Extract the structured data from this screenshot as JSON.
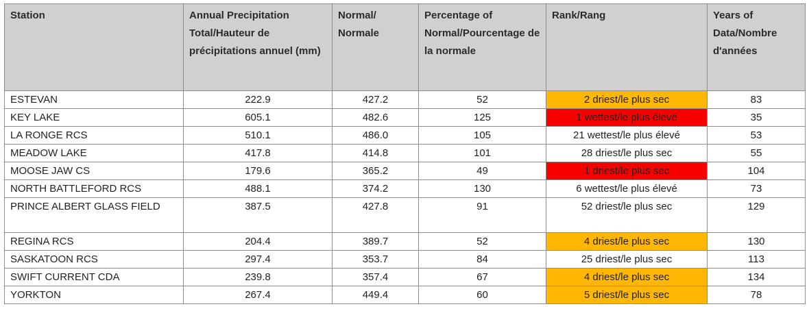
{
  "headers": {
    "station": "Station",
    "total": "Annual Precipitation Total/Hauteur de précipitations annuel (mm)",
    "normal": "Normal/ Normale",
    "percent": "Percentage of Normal/Pourcentage de la normale",
    "rank": "Rank/Rang",
    "years": "Years of Data/Nombre d'années"
  },
  "rows": [
    {
      "station": "ESTEVAN",
      "total": "222.9",
      "normal": "427.2",
      "percent": "52",
      "rank": "2 driest/le plus sec",
      "rank_highlight": "orange",
      "years": "83"
    },
    {
      "station": "KEY LAKE",
      "total": "605.1",
      "normal": "482.6",
      "percent": "125",
      "rank": "1 wettest/le plus élevé",
      "rank_highlight": "red",
      "years": "35"
    },
    {
      "station": "LA RONGE RCS",
      "total": "510.1",
      "normal": "486.0",
      "percent": "105",
      "rank": "21 wettest/le plus élevé",
      "rank_highlight": "none",
      "years": "53"
    },
    {
      "station": "MEADOW LAKE",
      "total": "417.8",
      "normal": "414.8",
      "percent": "101",
      "rank": "28 driest/le plus sec",
      "rank_highlight": "none",
      "years": "55"
    },
    {
      "station": "MOOSE JAW CS",
      "total": "179.6",
      "normal": "365.2",
      "percent": "49",
      "rank": "1 driest/le plus sec",
      "rank_highlight": "red",
      "years": "104"
    },
    {
      "station": "NORTH BATTLEFORD RCS",
      "total": "488.1",
      "normal": "374.2",
      "percent": "130",
      "rank": "6 wettest/le plus élevé",
      "rank_highlight": "none",
      "years": "73"
    },
    {
      "station": "PRINCE ALBERT GLASS FIELD",
      "total": "387.5",
      "normal": "427.8",
      "percent": "91",
      "rank": "52 driest/le plus sec",
      "rank_highlight": "none",
      "years": "129"
    },
    {
      "station": "REGINA RCS",
      "total": "204.4",
      "normal": "389.7",
      "percent": "52",
      "rank": "4 driest/le plus sec",
      "rank_highlight": "orange",
      "years": "130"
    },
    {
      "station": "SASKATOON RCS",
      "total": "297.4",
      "normal": "353.7",
      "percent": "84",
      "rank": "25 driest/le plus sec",
      "rank_highlight": "none",
      "years": "113"
    },
    {
      "station": "SWIFT CURRENT CDA",
      "total": "239.8",
      "normal": "357.4",
      "percent": "67",
      "rank": "4 driest/le plus sec",
      "rank_highlight": "orange",
      "years": "134"
    },
    {
      "station": "YORKTON",
      "total": "267.4",
      "normal": "449.4",
      "percent": "60",
      "rank": "5 driest/le plus sec",
      "rank_highlight": "orange",
      "years": "78"
    }
  ],
  "colors": {
    "header_bg": "#d0d0d0",
    "orange": "#ffb703",
    "red": "#f60000",
    "border": "#8c8c8c"
  }
}
